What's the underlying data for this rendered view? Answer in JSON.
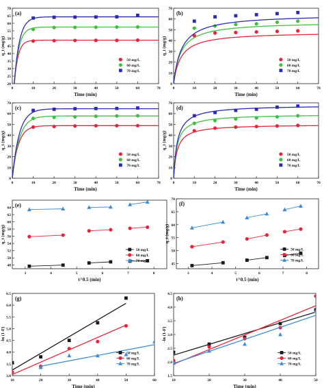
{
  "chart_data": [
    {
      "panel": "(a)",
      "type": "scatter",
      "xlabel": "Time (min)",
      "ylabel": "q_t (mg/g)",
      "xlim": [
        0,
        70
      ],
      "ylim": [
        20,
        70
      ],
      "xticks": [
        0,
        10,
        20,
        30,
        40,
        50,
        60,
        70
      ],
      "yticks": [
        20,
        25,
        30,
        35,
        40,
        45,
        50,
        55,
        60,
        65,
        70
      ],
      "legend_position": "middle-right",
      "series": [
        {
          "name": "50 mg/L",
          "color": "#e8233a",
          "marker": "circle",
          "x": [
            10,
            20,
            30,
            40,
            50,
            60
          ],
          "y": [
            48.2,
            48.5,
            48.6,
            48.7,
            48.7,
            48.8
          ],
          "fit": {
            "qe": 48.8,
            "k": 0.55,
            "kind": "exp"
          }
        },
        {
          "name": "60 mg/L",
          "color": "#3ec13e",
          "marker": "circle",
          "x": [
            10,
            20,
            30,
            40,
            50,
            60
          ],
          "y": [
            56.0,
            57.2,
            57.3,
            57.4,
            57.5,
            57.6
          ],
          "fit": {
            "qe": 57.5,
            "k": 0.45,
            "kind": "exp"
          }
        },
        {
          "name": "70 mg/L",
          "color": "#2a2ab6",
          "marker": "square",
          "x": [
            10,
            20,
            30,
            40,
            50,
            60
          ],
          "y": [
            63.5,
            64.0,
            64.1,
            64.2,
            64.3,
            65.3
          ],
          "fit": {
            "qe": 64.3,
            "k": 0.4,
            "kind": "exp"
          }
        }
      ]
    },
    {
      "panel": "(b)",
      "type": "scatter",
      "xlabel": "Time (min)",
      "ylabel": "q_t (mg/g)",
      "xlim": [
        0,
        70
      ],
      "ylim": [
        0,
        70
      ],
      "xticks": [
        0,
        10,
        20,
        30,
        40,
        50,
        60,
        70
      ],
      "yticks": [
        0,
        10,
        20,
        30,
        40,
        50,
        60,
        70
      ],
      "legend_position": "middle-right",
      "series": [
        {
          "name": "50 mg/L",
          "color": "#e8233a",
          "marker": "circle",
          "x": [
            10,
            20,
            30,
            40,
            50,
            60
          ],
          "y": [
            44.5,
            47.0,
            47.5,
            48.0,
            48.5,
            49.0
          ],
          "fit": {
            "qe": 48.0,
            "k": 0.006,
            "kind": "hyp"
          }
        },
        {
          "name": "60 mg/L",
          "color": "#3ec13e",
          "marker": "circle",
          "x": [
            10,
            20,
            30,
            40,
            50,
            60
          ],
          "y": [
            51.5,
            53.5,
            55.0,
            55.5,
            57.0,
            58.0
          ],
          "fit": {
            "qe": 57.5,
            "k": 0.005,
            "kind": "hyp"
          }
        },
        {
          "name": "70 mg/L",
          "color": "#2a2ab6",
          "marker": "square",
          "x": [
            10,
            20,
            30,
            40,
            50,
            60
          ],
          "y": [
            58.0,
            62.0,
            63.0,
            64.0,
            65.0,
            66.0
          ],
          "fit": {
            "qe": 64.5,
            "k": 0.004,
            "kind": "hyp"
          }
        }
      ]
    },
    {
      "panel": "(c)",
      "type": "scatter",
      "xlabel": "Time (min)",
      "ylabel": "q_t (mg/g)",
      "xlim": [
        0,
        70
      ],
      "ylim": [
        0,
        70
      ],
      "xticks": [
        0,
        10,
        20,
        30,
        40,
        50,
        60,
        70
      ],
      "yticks": [
        0,
        10,
        20,
        30,
        40,
        50,
        60,
        70
      ],
      "legend_position": "middle-right",
      "series": [
        {
          "name": "50 mg/L",
          "color": "#e8233a",
          "marker": "circle",
          "x": [
            10,
            20,
            30,
            40,
            50,
            60
          ],
          "y": [
            47.5,
            48.0,
            48.5,
            48.7,
            48.8,
            48.8
          ],
          "fit": {
            "qe": 48.8,
            "k": 0.35,
            "kind": "exp"
          }
        },
        {
          "name": "60 mg/L",
          "color": "#3ec13e",
          "marker": "circle",
          "x": [
            10,
            20,
            30,
            40,
            50,
            60
          ],
          "y": [
            55.5,
            56.5,
            57.0,
            57.5,
            57.8,
            58.0
          ],
          "fit": {
            "qe": 57.8,
            "k": 0.3,
            "kind": "exp"
          }
        },
        {
          "name": "70 mg/L",
          "color": "#2a2ab6",
          "marker": "square",
          "x": [
            10,
            20,
            30,
            40,
            50,
            60
          ],
          "y": [
            63.0,
            64.0,
            64.5,
            64.7,
            64.8,
            65.2
          ],
          "fit": {
            "qe": 64.5,
            "k": 0.3,
            "kind": "exp"
          }
        }
      ]
    },
    {
      "panel": "(d)",
      "type": "scatter",
      "xlabel": "Time (min)",
      "ylabel": "q_t (mg/g)",
      "xlim": [
        0,
        70
      ],
      "ylim": [
        0,
        70
      ],
      "xticks": [
        0,
        10,
        20,
        30,
        40,
        50,
        60,
        70
      ],
      "yticks": [
        0,
        10,
        20,
        30,
        40,
        50,
        60,
        70
      ],
      "legend_position": "middle-right",
      "series": [
        {
          "name": "50 mg/L",
          "color": "#e8233a",
          "marker": "circle",
          "x": [
            10,
            20,
            30,
            40,
            50,
            60
          ],
          "y": [
            44.0,
            46.5,
            47.5,
            48.0,
            48.5,
            49.0
          ],
          "fit": {
            "qe": 50.0,
            "k": 0.012,
            "kind": "hyp"
          }
        },
        {
          "name": "60 mg/L",
          "color": "#3ec13e",
          "marker": "circle",
          "x": [
            10,
            20,
            30,
            40,
            50,
            60
          ],
          "y": [
            51.0,
            53.5,
            55.0,
            56.0,
            57.0,
            58.0
          ],
          "fit": {
            "qe": 59.5,
            "k": 0.01,
            "kind": "hyp"
          }
        },
        {
          "name": "70 mg/L",
          "color": "#2a2ab6",
          "marker": "square",
          "x": [
            10,
            20,
            30,
            40,
            50,
            60
          ],
          "y": [
            58.0,
            61.0,
            63.0,
            64.0,
            66.0,
            67.0
          ],
          "fit": {
            "qe": 68.0,
            "k": 0.008,
            "kind": "hyp"
          }
        }
      ]
    },
    {
      "panel": "(e)",
      "type": "scatter",
      "xlabel": "t^0.5 (min)",
      "ylabel": "q_t (mg/g)",
      "xlim": [
        2.5,
        8.5
      ],
      "ylim": [
        47,
        66
      ],
      "xticks": [
        3,
        4,
        5,
        6,
        7,
        8
      ],
      "yticks": [
        48,
        50,
        52,
        54,
        56,
        58,
        60,
        62,
        64
      ],
      "legend_position": "lower-right",
      "series": [
        {
          "name": "50 mg/L",
          "color": "#1a1a1a",
          "marker": "square",
          "segments": [
            {
              "x": [
                3.16,
                4.47
              ],
              "y": [
                47.7,
                48.0
              ]
            },
            {
              "x": [
                5.48,
                6.32
              ],
              "y": [
                48.6,
                48.9
              ]
            },
            {
              "x": [
                7.07,
                7.75
              ],
              "y": [
                49.1,
                49.2
              ]
            }
          ]
        },
        {
          "name": "60 mg/L",
          "color": "#e8233a",
          "marker": "circle",
          "segments": [
            {
              "x": [
                3.16,
                4.47
              ],
              "y": [
                55.9,
                56.3
              ]
            },
            {
              "x": [
                5.48,
                6.32
              ],
              "y": [
                57.5,
                57.8
              ]
            },
            {
              "x": [
                7.07,
                7.75
              ],
              "y": [
                58.2,
                58.5
              ]
            }
          ]
        },
        {
          "name": "70 mg/L",
          "color": "#3d8bd6",
          "marker": "triangle",
          "segments": [
            {
              "x": [
                3.16,
                4.47
              ],
              "y": [
                63.4,
                63.6
              ]
            },
            {
              "x": [
                5.48,
                6.32
              ],
              "y": [
                64.0,
                64.1
              ]
            },
            {
              "x": [
                7.07,
                7.75
              ],
              "y": [
                64.8,
                65.5
              ]
            }
          ]
        }
      ]
    },
    {
      "panel": "(f)",
      "type": "scatter",
      "xlabel": "t^0.5 (min)",
      "ylabel": "q_t (mg/g)",
      "xlim": [
        2.5,
        8.5
      ],
      "ylim": [
        43,
        70
      ],
      "xticks": [
        3,
        4,
        5,
        6,
        7,
        8
      ],
      "yticks": [
        45,
        50,
        55,
        60,
        65,
        70
      ],
      "legend_position": "lower-right",
      "series": [
        {
          "name": "50 mg/L",
          "color": "#1a1a1a",
          "marker": "square",
          "segments": [
            {
              "x": [
                3.16,
                4.47
              ],
              "y": [
                44.2,
                45.3
              ]
            },
            {
              "x": [
                5.48,
                6.32
              ],
              "y": [
                46.3,
                47.3
              ]
            },
            {
              "x": [
                7.07,
                7.75
              ],
              "y": [
                48.1,
                49.0
              ]
            }
          ]
        },
        {
          "name": "60 mg/L",
          "color": "#e8233a",
          "marker": "circle",
          "segments": [
            {
              "x": [
                3.16,
                4.47
              ],
              "y": [
                51.5,
                53.3
              ]
            },
            {
              "x": [
                5.48,
                6.32
              ],
              "y": [
                54.5,
                56.0
              ]
            },
            {
              "x": [
                7.07,
                7.75
              ],
              "y": [
                57.3,
                58.3
              ]
            }
          ]
        },
        {
          "name": "70 mg/L",
          "color": "#3d8bd6",
          "marker": "triangle",
          "segments": [
            {
              "x": [
                3.16,
                4.47
              ],
              "y": [
                58.8,
                61.0
              ]
            },
            {
              "x": [
                5.48,
                6.32
              ],
              "y": [
                62.7,
                64.2
              ]
            },
            {
              "x": [
                7.07,
                7.75
              ],
              "y": [
                65.8,
                67.2
              ]
            }
          ]
        }
      ]
    },
    {
      "panel": "(g)",
      "type": "scatter",
      "xlabel": "Time (min)",
      "ylabel": "-ln (1-F)",
      "xlim": [
        10,
        60
      ],
      "ylim": [
        3.0,
        6.5
      ],
      "xticks": [
        10,
        20,
        30,
        40,
        50,
        60
      ],
      "yticks": [
        3.0,
        3.5,
        4.0,
        4.5,
        5.0,
        5.5,
        6.0,
        6.5
      ],
      "legend_position": "lower-right",
      "series": [
        {
          "name": "50 mg/L",
          "color": "#1a1a1a",
          "marker": "square",
          "x": [
            10,
            20,
            30,
            40,
            50
          ],
          "y": [
            3.55,
            3.8,
            4.5,
            5.25,
            6.3
          ],
          "fit": {
            "x": [
              10,
              50
            ],
            "y": [
              3.24,
              6.08
            ],
            "kind": "line"
          }
        },
        {
          "name": "60 mg/L",
          "color": "#e8233a",
          "marker": "circle",
          "x": [
            10,
            20,
            30,
            40,
            50
          ],
          "y": [
            3.15,
            3.4,
            4.15,
            4.45,
            5.12
          ],
          "fit": {
            "x": [
              10,
              50
            ],
            "y": [
              3.05,
              5.15
            ],
            "kind": "line"
          }
        },
        {
          "name": "70 mg/L",
          "color": "#3d8bd6",
          "marker": "triangle",
          "x": [
            20,
            30,
            40,
            50,
            60
          ],
          "y": [
            3.35,
            3.85,
            3.85,
            3.9,
            4.45
          ],
          "fit": {
            "x": [
              20,
              60
            ],
            "y": [
              3.4,
              4.32
            ],
            "kind": "line"
          }
        }
      ]
    },
    {
      "panel": "(h)",
      "type": "scatter",
      "xlabel": "Time (min)",
      "ylabel": "-ln (1-F)",
      "xlim": [
        10,
        50
      ],
      "ylim": [
        1.5,
        4.5
      ],
      "xticks": [
        10,
        20,
        30,
        40,
        50
      ],
      "yticks": [
        1.5,
        2.0,
        2.5,
        3.0,
        3.5,
        4.0,
        4.5
      ],
      "legend_position": "lower-right",
      "series": [
        {
          "name": "50 mg/L",
          "color": "#1a1a1a",
          "marker": "square",
          "x": [
            10,
            20,
            30,
            40,
            50
          ],
          "y": [
            2.35,
            2.65,
            2.9,
            3.4,
            3.9
          ],
          "fit": {
            "x": [
              10,
              50
            ],
            "y": [
              2.25,
              3.82
            ],
            "kind": "line"
          }
        },
        {
          "name": "60 mg/L",
          "color": "#e8233a",
          "marker": "circle",
          "x": [
            10,
            20,
            30,
            40,
            50
          ],
          "y": [
            2.05,
            2.55,
            2.85,
            3.25,
            4.4
          ],
          "fit": {
            "x": [
              10,
              50
            ],
            "y": [
              1.92,
              4.05
            ],
            "kind": "line"
          }
        },
        {
          "name": "70 mg/L",
          "color": "#3d8bd6",
          "marker": "triangle",
          "x": [
            10,
            20,
            30,
            40,
            50
          ],
          "y": [
            1.95,
            2.4,
            2.65,
            3.0,
            3.85
          ],
          "fit": {
            "x": [
              10,
              50
            ],
            "y": [
              1.95,
              3.7
            ],
            "kind": "line"
          }
        }
      ]
    }
  ]
}
